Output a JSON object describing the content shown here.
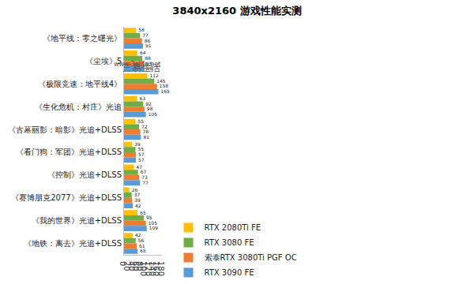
{
  "chart_data": {
    "type": "bar",
    "title": "3840x2160 游戏性能实测",
    "orientation": "horizontal",
    "categories": [
      "《地平线：零之曙光》",
      "《尘埃》5",
      "《极限竞速：地平线4》",
      "《生化危机：村庄》光追",
      "《古墓丽影：暗影》光追+DLSS",
      "《看门狗：军团》光追+DLSS",
      "《控制》光追+DLSS",
      "《赛博朋克2077》光追+DLSS",
      "《我的世界》光追+DLSS",
      "《地铁：离去》光追+DLSS"
    ],
    "series": [
      {
        "name": "RTX 2080Ti FE",
        "color": "#FFC000",
        "values": [
          58,
          64,
          112,
          63,
          55,
          39,
          47,
          26,
          65,
          42
        ]
      },
      {
        "name": "RTX 3080 FE",
        "color": "#70AD47",
        "values": [
          77,
          88,
          145,
          92,
          72,
          55,
          67,
          37,
          95,
          56
        ]
      },
      {
        "name": "索泰RTX 3080Ti PGF OC",
        "color": "#ED7D31",
        "values": [
          86,
          95,
          158,
          98,
          78,
          57,
          73,
          39,
          105,
          61
        ]
      },
      {
        "name": "RTX 3090 FE",
        "color": "#5B9BD5",
        "values": [
          91,
          98,
          165,
          105,
          81,
          57,
          77,
          42,
          109,
          65
        ]
      }
    ],
    "xlim": [
      0,
      180
    ],
    "xticks": [
      0,
      20,
      40,
      60,
      80,
      100,
      120,
      140,
      160,
      180
    ],
    "grid": false,
    "data_labels": true,
    "legend": "bottom",
    "annotations": [
      {
        "text": "三易生活"
      },
      {
        "text": "www.3elife.net"
      }
    ]
  }
}
